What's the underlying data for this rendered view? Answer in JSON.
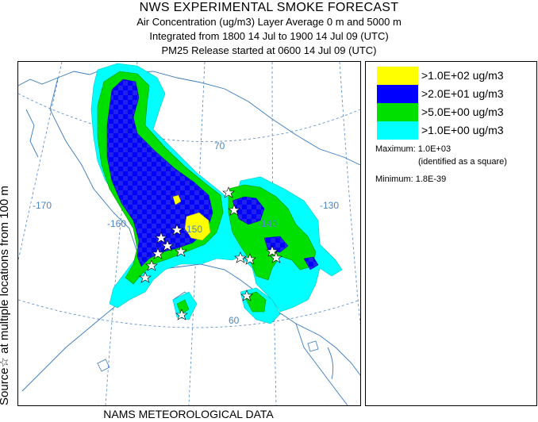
{
  "header": {
    "title": "NWS EXPERIMENTAL SMOKE FORECAST",
    "line1": "Air Concentration (ug/m3) Layer Average    0 m and  5000 m",
    "line2": "Integrated from 1800 14 Jul to 1900 14 Jul 09 (UTC)",
    "line3": "PM25 Release started at 0600 14 Jul 09 (UTC)"
  },
  "side_label": "Source☆ at multiple locations  from  100 m",
  "bottom_label": "NAMS METEOROLOGICAL DATA",
  "map": {
    "grid_labels": {
      "lon_170": "-170",
      "lon_160": "-160",
      "lon_150": "-150",
      "lon_140": "-140",
      "lon_130": "-130",
      "lat_70": "70",
      "lat_60": "60"
    }
  },
  "legend": {
    "items": [
      {
        "label": ">1.0E+02 ug/m3",
        "color": "#ffff00"
      },
      {
        "label": ">2.0E+01 ug/m3",
        "color": "#0000ff"
      },
      {
        "label": ">5.0E+00 ug/m3",
        "color": "#00e000"
      },
      {
        "label": ">1.0E+00 ug/m3",
        "color": "#00ffff"
      }
    ],
    "maximum": "Maximum: 1.0E+03",
    "maximum_note": "(identified as a square)",
    "minimum": "Minimum: 1.8E-39"
  },
  "colors": {
    "level_100": "#ffff00",
    "level_20": "#0000ff",
    "level_5": "#00e000",
    "level_1": "#00ffff",
    "grid": "#4a86c8",
    "coast": "#3a7ac0"
  }
}
